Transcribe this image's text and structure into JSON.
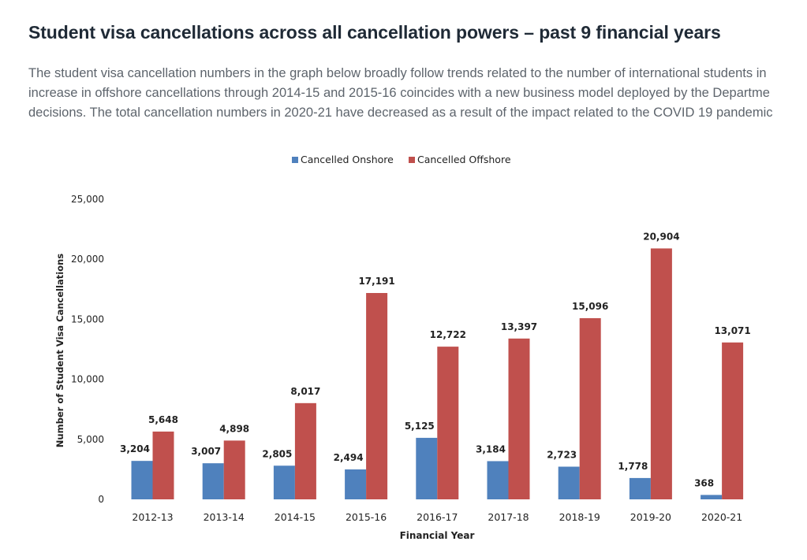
{
  "heading": "Student visa cancellations across all cancellation powers – past 9 financial years",
  "paragraph_lines": [
    "The student visa cancellation numbers in the graph below broadly follow trends related to the number of international students in",
    "increase in offshore cancellations through 2014-15 and 2015-16 coincides with a new business model deployed by the Departme",
    "decisions. The total cancellation numbers in 2020-21 have decreased as a result of the impact related to the COVID 19 pandemic"
  ],
  "colors": {
    "onshore": "#4f81bd",
    "offshore": "#c0504d"
  },
  "chart_data": {
    "type": "bar",
    "title": "",
    "xlabel": "Financial Year",
    "ylabel": "Number of Student Visa Cancellations",
    "ylim": [
      0,
      25000
    ],
    "yticks": [
      0,
      5000,
      10000,
      15000,
      20000,
      25000
    ],
    "ytick_labels": [
      "0",
      "5,000",
      "10,000",
      "15,000",
      "20,000",
      "25,000"
    ],
    "grid": false,
    "legend_position": "top",
    "categories": [
      "2012-13",
      "2013-14",
      "2014-15",
      "2015-16",
      "2016-17",
      "2017-18",
      "2018-19",
      "2019-20",
      "2020-21"
    ],
    "series": [
      {
        "name": "Cancelled Onshore",
        "values": [
          3204,
          3007,
          2805,
          2494,
          5125,
          3184,
          2723,
          1778,
          368
        ],
        "labels": [
          "3,204",
          "3,007",
          "2,805",
          "2,494",
          "5,125",
          "3,184",
          "2,723",
          "1,778",
          "368"
        ]
      },
      {
        "name": "Cancelled Offshore",
        "values": [
          5648,
          4898,
          8017,
          17191,
          12722,
          13397,
          15096,
          20904,
          13071
        ],
        "labels": [
          "5,648",
          "4,898",
          "8,017",
          "17,191",
          "12,722",
          "13,397",
          "15,096",
          "20,904",
          "13,071"
        ]
      }
    ]
  }
}
